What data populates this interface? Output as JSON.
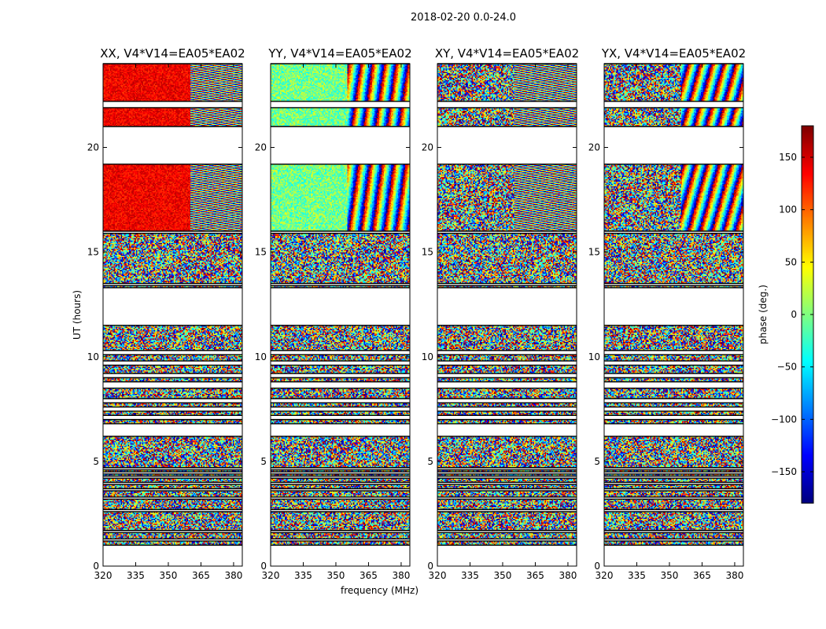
{
  "figure": {
    "suptitle": "2018-02-20 0.0-24.0"
  },
  "chart_data": [
    {
      "type": "heatmap",
      "title": "XX, V4*V14=EA05*EA02",
      "ylabel": "UT (hours)",
      "xlabel": "",
      "xlim": [
        320,
        384
      ],
      "ylim": [
        0,
        24
      ],
      "xticks": [
        "320",
        "335",
        "350",
        "365",
        "380"
      ],
      "yticks": [
        "0",
        "5",
        "10",
        "15",
        "20"
      ],
      "pattern": "warm-left"
    },
    {
      "type": "heatmap",
      "title": "YY, V4*V14=EA05*EA02",
      "ylabel": "",
      "xlabel": "frequency (MHz)",
      "xlim": [
        320,
        384
      ],
      "ylim": [
        0,
        24
      ],
      "xticks": [
        "320",
        "335",
        "350",
        "365",
        "380"
      ],
      "yticks": [
        "0",
        "5",
        "10",
        "15",
        "20"
      ],
      "pattern": "green-left"
    },
    {
      "type": "heatmap",
      "title": "XY, V4*V14=EA05*EA02",
      "ylabel": "",
      "xlabel": "",
      "xlim": [
        320,
        384
      ],
      "ylim": [
        0,
        24
      ],
      "xticks": [
        "320",
        "335",
        "350",
        "365",
        "380"
      ],
      "yticks": [
        "0",
        "5",
        "10",
        "15",
        "20"
      ],
      "pattern": "noise"
    },
    {
      "type": "heatmap",
      "title": "YX, V4*V14=EA05*EA02",
      "ylabel": "",
      "xlabel": "",
      "xlim": [
        320,
        384
      ],
      "ylim": [
        0,
        24
      ],
      "xticks": [
        "320",
        "335",
        "350",
        "365",
        "380"
      ],
      "yticks": [
        "0",
        "5",
        "10",
        "15",
        "20"
      ],
      "pattern": "noise"
    }
  ],
  "data_blocks_hours": [
    [
      1.0,
      1.2
    ],
    [
      1.3,
      1.6
    ],
    [
      1.7,
      2.6
    ],
    [
      2.7,
      3.2
    ],
    [
      3.3,
      3.6
    ],
    [
      3.7,
      3.9
    ],
    [
      4.0,
      4.2
    ],
    [
      4.3,
      4.4
    ],
    [
      4.5,
      4.6
    ],
    [
      4.7,
      6.2
    ],
    [
      6.8,
      7.0
    ],
    [
      7.2,
      7.4
    ],
    [
      7.6,
      7.8
    ],
    [
      8.0,
      8.5
    ],
    [
      8.8,
      9.0
    ],
    [
      9.2,
      9.6
    ],
    [
      9.8,
      10.1
    ],
    [
      10.3,
      11.5
    ],
    [
      13.3,
      13.4
    ],
    [
      13.5,
      15.9
    ],
    [
      16.0,
      19.2
    ],
    [
      21.0,
      21.9
    ],
    [
      22.2,
      24.0
    ]
  ],
  "colorbar": {
    "label": "phase (deg.)",
    "range": [
      -180,
      180
    ],
    "ticks": [
      "150",
      "100",
      "50",
      "0",
      "−50",
      "−100",
      "−150"
    ],
    "tick_values": [
      150,
      100,
      50,
      0,
      -50,
      -100,
      -150
    ],
    "colormap": "jet"
  }
}
